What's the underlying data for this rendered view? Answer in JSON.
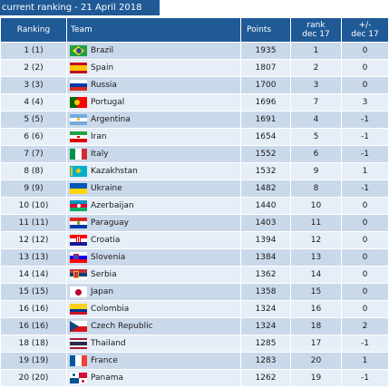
{
  "title": "current ranking - 21 April 2018",
  "headers": {
    "ranking": "Ranking",
    "team": "Team",
    "points": "Points",
    "rank_line1": "rank",
    "rank_line2": "dec 17",
    "change_line1": "+/-",
    "change_line2": "dec 17"
  },
  "rows": [
    {
      "rank": "1 (1)",
      "team": "Brazil",
      "flag": "brazil-flag-icon",
      "points": "1935",
      "rank_dec17": "1",
      "change": "0"
    },
    {
      "rank": "2 (2)",
      "team": "Spain",
      "flag": "spain-flag-icon",
      "points": "1807",
      "rank_dec17": "2",
      "change": "0"
    },
    {
      "rank": "3 (3)",
      "team": "Russia",
      "flag": "russia-flag-icon",
      "points": "1700",
      "rank_dec17": "3",
      "change": "0"
    },
    {
      "rank": "4 (4)",
      "team": "Portugal",
      "flag": "portugal-flag-icon",
      "points": "1696",
      "rank_dec17": "7",
      "change": "3"
    },
    {
      "rank": "5 (5)",
      "team": "Argentina",
      "flag": "argentina-flag-icon",
      "points": "1691",
      "rank_dec17": "4",
      "change": "-1"
    },
    {
      "rank": "6 (6)",
      "team": "Iran",
      "flag": "iran-flag-icon",
      "points": "1654",
      "rank_dec17": "5",
      "change": "-1"
    },
    {
      "rank": "7 (7)",
      "team": "Italy",
      "flag": "italy-flag-icon",
      "points": "1552",
      "rank_dec17": "6",
      "change": "-1"
    },
    {
      "rank": "8 (8)",
      "team": "Kazakhstan",
      "flag": "kazakhstan-flag-icon",
      "points": "1532",
      "rank_dec17": "9",
      "change": "1"
    },
    {
      "rank": "9 (9)",
      "team": "Ukraine",
      "flag": "ukraine-flag-icon",
      "points": "1482",
      "rank_dec17": "8",
      "change": "-1"
    },
    {
      "rank": "10 (10)",
      "team": "Azerbaijan",
      "flag": "azerbaijan-flag-icon",
      "points": "1440",
      "rank_dec17": "10",
      "change": "0"
    },
    {
      "rank": "11 (11)",
      "team": "Paraguay",
      "flag": "paraguay-flag-icon",
      "points": "1403",
      "rank_dec17": "11",
      "change": "0"
    },
    {
      "rank": "12 (12)",
      "team": "Croatia",
      "flag": "croatia-flag-icon",
      "points": "1394",
      "rank_dec17": "12",
      "change": "0"
    },
    {
      "rank": "13 (13)",
      "team": "Slovenia",
      "flag": "slovenia-flag-icon",
      "points": "1384",
      "rank_dec17": "13",
      "change": "0"
    },
    {
      "rank": "14 (14)",
      "team": "Serbia",
      "flag": "serbia-flag-icon",
      "points": "1362",
      "rank_dec17": "14",
      "change": "0"
    },
    {
      "rank": "15 (15)",
      "team": "Japan",
      "flag": "japan-flag-icon",
      "points": "1358",
      "rank_dec17": "15",
      "change": "0"
    },
    {
      "rank": "16 (16)",
      "team": "Colombia",
      "flag": "colombia-flag-icon",
      "points": "1324",
      "rank_dec17": "16",
      "change": "0"
    },
    {
      "rank": "16 (16)",
      "team": "Czech Republic",
      "flag": "czech-flag-icon",
      "points": "1324",
      "rank_dec17": "18",
      "change": "2"
    },
    {
      "rank": "18 (18)",
      "team": "Thailand",
      "flag": "thailand-flag-icon",
      "points": "1285",
      "rank_dec17": "17",
      "change": "-1"
    },
    {
      "rank": "19 (19)",
      "team": "France",
      "flag": "france-flag-icon",
      "points": "1283",
      "rank_dec17": "20",
      "change": "1"
    },
    {
      "rank": "20 (20)",
      "team": "Panama",
      "flag": "panama-flag-icon",
      "points": "1262",
      "rank_dec17": "19",
      "change": "-1"
    }
  ],
  "colors": {
    "header_bg": "#1f5a96",
    "row_odd": "#cad9ea",
    "row_even": "#e6eef7"
  }
}
